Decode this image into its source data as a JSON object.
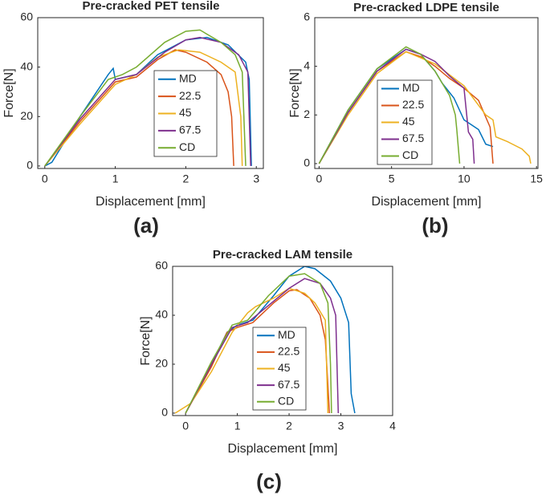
{
  "chart_data": [
    {
      "type": "line",
      "title": "Pre-cracked PET tensile",
      "panel_label": "(a)",
      "xlabel": "Displacement [mm]",
      "ylabel": "Force[N]",
      "xlim": [
        -0.1,
        3.1
      ],
      "ylim": [
        -1,
        60
      ],
      "xticks": [
        0,
        1,
        2,
        3
      ],
      "yticks": [
        0,
        20,
        40,
        60
      ],
      "grid": false,
      "series": [
        {
          "name": "MD",
          "color": "#0072bd",
          "x": [
            0,
            0.1,
            0.5,
            0.9,
            0.97,
            1.0,
            1.3,
            1.6,
            2.0,
            2.3,
            2.6,
            2.85,
            2.9,
            2.93
          ],
          "values": [
            0,
            1.5,
            20,
            37,
            39.5,
            35,
            37,
            45,
            51,
            52,
            49,
            42,
            35,
            0
          ]
        },
        {
          "name": "22.5",
          "color": "#d95319",
          "x": [
            0,
            0.5,
            1.0,
            1.3,
            1.6,
            1.85,
            2.0,
            2.3,
            2.5,
            2.6,
            2.65,
            2.68
          ],
          "values": [
            0,
            18,
            34,
            36,
            43,
            47,
            46,
            42,
            37,
            30,
            20,
            0
          ]
        },
        {
          "name": "45",
          "color": "#edb120",
          "x": [
            0,
            0.5,
            1.0,
            1.3,
            1.6,
            1.9,
            2.2,
            2.5,
            2.7,
            2.78,
            2.8
          ],
          "values": [
            0,
            17,
            33,
            37,
            44,
            47,
            46,
            42,
            38,
            20,
            0
          ]
        },
        {
          "name": "67.5",
          "color": "#7e2f8e",
          "x": [
            0,
            0.5,
            1.0,
            1.3,
            1.7,
            2.0,
            2.2,
            2.5,
            2.75,
            2.88,
            2.92
          ],
          "values": [
            0,
            19,
            35,
            37,
            46,
            51,
            52,
            50,
            45,
            38,
            0
          ]
        },
        {
          "name": "CD",
          "color": "#77ac30",
          "x": [
            0,
            0.5,
            0.9,
            1.1,
            1.3,
            1.7,
            2.0,
            2.2,
            2.5,
            2.7,
            2.8,
            2.85
          ],
          "values": [
            0,
            20,
            35,
            37,
            40,
            50,
            54.5,
            55,
            50,
            45,
            38,
            0
          ]
        }
      ]
    },
    {
      "type": "line",
      "title": "Pre-cracked LDPE tensile",
      "panel_label": "(b)",
      "xlabel": "Displacement [mm]",
      "ylabel": "Force[N]",
      "xlim": [
        -0.3,
        15.1
      ],
      "ylim": [
        -0.2,
        6
      ],
      "xticks": [
        0,
        5,
        10,
        15
      ],
      "yticks": [
        0,
        2,
        4,
        6
      ],
      "grid": false,
      "series": [
        {
          "name": "MD",
          "color": "#0072bd",
          "x": [
            0,
            2,
            4,
            6,
            7,
            8,
            8.5,
            9.3,
            10,
            11,
            11.5,
            12
          ],
          "values": [
            0,
            2.2,
            3.9,
            4.7,
            4.5,
            3.8,
            3.3,
            2.7,
            1.8,
            1.4,
            0.8,
            0.7
          ]
        },
        {
          "name": "22.5",
          "color": "#d95319",
          "x": [
            0,
            2,
            4,
            6,
            7,
            8,
            9,
            10,
            11,
            11.8,
            12
          ],
          "values": [
            0,
            2.1,
            3.8,
            4.6,
            4.4,
            4,
            3.5,
            3.1,
            2.6,
            1.5,
            0
          ]
        },
        {
          "name": "45",
          "color": "#edb120",
          "x": [
            0,
            2,
            4,
            6,
            8,
            10,
            11.5,
            12,
            12.2,
            13,
            14,
            14.5,
            14.6
          ],
          "values": [
            0,
            2.0,
            3.7,
            4.6,
            4.1,
            3.2,
            2.0,
            1.8,
            1.1,
            0.9,
            0.6,
            0.3,
            0
          ]
        },
        {
          "name": "67.5",
          "color": "#7e2f8e",
          "x": [
            0,
            2,
            4,
            6,
            7,
            8,
            9,
            10,
            10.3,
            10.6,
            10.7
          ],
          "values": [
            0,
            2.1,
            3.8,
            4.7,
            4.5,
            4.2,
            3.6,
            3.1,
            1.3,
            1.0,
            0
          ]
        },
        {
          "name": "CD",
          "color": "#77ac30",
          "x": [
            0,
            2,
            4,
            6,
            7,
            8,
            9,
            9.4,
            9.5,
            9.7
          ],
          "values": [
            0,
            2.2,
            3.9,
            4.8,
            4.5,
            3.8,
            2.8,
            2.0,
            1.4,
            0
          ]
        }
      ]
    },
    {
      "type": "line",
      "title": "Pre-cracked LAM tensile",
      "panel_label": "(c)",
      "xlabel": "Displacement [mm]",
      "ylabel": "Force[N]",
      "xlim": [
        -0.25,
        4
      ],
      "ylim": [
        -1,
        60
      ],
      "xticks": [
        0,
        1,
        2,
        3,
        4
      ],
      "yticks": [
        0,
        20,
        40,
        60
      ],
      "grid": false,
      "series": [
        {
          "name": "MD",
          "color": "#0072bd",
          "x": [
            0,
            0.5,
            0.8,
            1.0,
            1.3,
            1.7,
            2.0,
            2.3,
            2.5,
            2.8,
            3.0,
            3.15,
            3.2,
            3.27
          ],
          "values": [
            0,
            20,
            33,
            36,
            38,
            48,
            56,
            60,
            59,
            54,
            47,
            37,
            8,
            0
          ]
        },
        {
          "name": "22.5",
          "color": "#d95319",
          "x": [
            0,
            0.5,
            0.8,
            1.0,
            1.3,
            1.7,
            2.0,
            2.15,
            2.4,
            2.6,
            2.7,
            2.78
          ],
          "values": [
            0,
            19,
            33,
            35,
            37,
            45,
            50,
            50.5,
            47,
            40,
            30,
            0
          ]
        },
        {
          "name": "45",
          "color": "#edb120",
          "x": [
            -0.2,
            0.1,
            0.5,
            0.9,
            1.2,
            1.35,
            1.7,
            2.0,
            2.3,
            2.5,
            2.7,
            2.75
          ],
          "values": [
            0,
            4,
            17,
            33,
            41,
            43.5,
            47,
            51,
            49,
            45,
            38,
            0
          ]
        },
        {
          "name": "67.5",
          "color": "#7e2f8e",
          "x": [
            0,
            0.5,
            0.9,
            1.2,
            1.6,
            2.0,
            2.3,
            2.6,
            2.8,
            2.9,
            2.95
          ],
          "values": [
            0,
            20,
            35,
            37,
            44,
            51,
            55,
            53,
            47,
            40,
            0
          ]
        },
        {
          "name": "CD",
          "color": "#77ac30",
          "x": [
            0,
            0.5,
            0.9,
            1.2,
            1.6,
            2.0,
            2.3,
            2.6,
            2.75,
            2.8,
            2.82
          ],
          "values": [
            0,
            21,
            36,
            38,
            48,
            56,
            57,
            53,
            45,
            20,
            0
          ]
        }
      ]
    }
  ]
}
